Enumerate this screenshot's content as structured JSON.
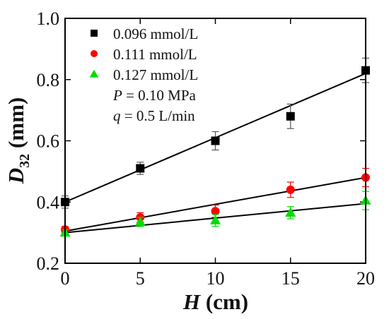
{
  "chart_data": {
    "type": "scatter",
    "xlabel_var": "H",
    "xlabel_unit": " (cm)",
    "ylabel_var": "D",
    "ylabel_sub": "32",
    "ylabel_unit": " (mm)",
    "xlim": [
      0,
      20
    ],
    "ylim": [
      0.2,
      1.0
    ],
    "xticks": [
      0,
      5,
      10,
      15,
      20
    ],
    "yticks": [
      0.2,
      0.4,
      0.6,
      0.8,
      1.0
    ],
    "xtick_labels": [
      "0",
      "5",
      "10",
      "15",
      "20"
    ],
    "ytick_labels": [
      "0.2",
      "0.4",
      "0.6",
      "0.8",
      "1.0"
    ],
    "legend_position": "top-left",
    "series": [
      {
        "name": "0.096 mmol/L",
        "marker": "square",
        "color": "#000000",
        "x": [
          0,
          5,
          10,
          15,
          20
        ],
        "y": [
          0.4,
          0.51,
          0.6,
          0.68,
          0.83
        ],
        "err": [
          0.02,
          0.02,
          0.03,
          0.04,
          0.04
        ],
        "fit": [
          0.4,
          0.82
        ]
      },
      {
        "name": "0.111 mmol/L",
        "marker": "circle",
        "color": "#ff0000",
        "x": [
          0,
          5,
          10,
          15,
          20
        ],
        "y": [
          0.31,
          0.35,
          0.37,
          0.44,
          0.48
        ],
        "err": [
          0.01,
          0.015,
          0.02,
          0.025,
          0.03
        ],
        "fit": [
          0.305,
          0.48
        ]
      },
      {
        "name": "0.127 mmol/L",
        "marker": "triangle",
        "color": "#00dd00",
        "x": [
          0,
          5,
          10,
          15,
          20
        ],
        "y": [
          0.3,
          0.335,
          0.34,
          0.365,
          0.405
        ],
        "err": [
          0.01,
          0.015,
          0.02,
          0.02,
          0.03
        ],
        "fit": [
          0.3,
          0.395
        ]
      }
    ],
    "annotations": [
      {
        "var": "P",
        "text": " = 0.10 MPa"
      },
      {
        "var": "q",
        "text": " = 0.5 L/min"
      }
    ]
  }
}
